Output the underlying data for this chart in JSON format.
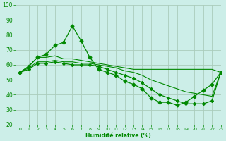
{
  "xlabel": "Humidité relative (%)",
  "background_color": "#cceee8",
  "grid_color": "#aaccbb",
  "line_color": "#008800",
  "tick_color": "#008800",
  "ylim": [
    20,
    100
  ],
  "xlim": [
    -0.5,
    23
  ],
  "yticks": [
    20,
    30,
    40,
    50,
    60,
    70,
    80,
    90,
    100
  ],
  "xticks": [
    0,
    1,
    2,
    3,
    4,
    5,
    6,
    7,
    8,
    9,
    10,
    11,
    12,
    13,
    14,
    15,
    16,
    17,
    18,
    19,
    20,
    21,
    22,
    23
  ],
  "series": [
    {
      "x": [
        0,
        1,
        2,
        3,
        4,
        5,
        6,
        7,
        8,
        9,
        10,
        11,
        12,
        13,
        14,
        15,
        16,
        17,
        18,
        19,
        20,
        21,
        22,
        23
      ],
      "y": [
        55,
        59,
        65,
        67,
        73,
        75,
        86,
        76,
        65,
        57,
        55,
        53,
        49,
        47,
        44,
        38,
        35,
        35,
        33,
        35,
        39,
        43,
        47,
        55
      ],
      "marker": "D",
      "markersize": 2.5,
      "linewidth": 0.9
    },
    {
      "x": [
        0,
        1,
        2,
        3,
        4,
        5,
        6,
        7,
        8,
        9,
        10,
        11,
        12,
        13,
        14,
        15,
        16,
        17,
        18,
        19,
        20,
        21,
        22,
        23
      ],
      "y": [
        55,
        59,
        65,
        65,
        66,
        64,
        64,
        63,
        62,
        61,
        60,
        59,
        58,
        57,
        57,
        57,
        57,
        57,
        57,
        57,
        57,
        57,
        57,
        55
      ],
      "marker": null,
      "markersize": 0,
      "linewidth": 0.8
    },
    {
      "x": [
        0,
        1,
        2,
        3,
        4,
        5,
        6,
        7,
        8,
        9,
        10,
        11,
        12,
        13,
        14,
        15,
        16,
        17,
        18,
        19,
        20,
        21,
        22,
        23
      ],
      "y": [
        55,
        58,
        62,
        62,
        63,
        62,
        62,
        61,
        61,
        60,
        59,
        58,
        56,
        55,
        53,
        50,
        48,
        46,
        44,
        42,
        41,
        40,
        39,
        55
      ],
      "marker": null,
      "markersize": 0,
      "linewidth": 0.8
    },
    {
      "x": [
        0,
        1,
        2,
        3,
        4,
        5,
        6,
        7,
        8,
        9,
        10,
        11,
        12,
        13,
        14,
        15,
        16,
        17,
        18,
        19,
        20,
        21,
        22,
        23
      ],
      "y": [
        55,
        57,
        61,
        61,
        62,
        61,
        60,
        60,
        60,
        59,
        57,
        55,
        53,
        51,
        48,
        44,
        40,
        38,
        36,
        34,
        34,
        34,
        36,
        55
      ],
      "marker": "D",
      "markersize": 2.0,
      "linewidth": 0.9
    }
  ]
}
